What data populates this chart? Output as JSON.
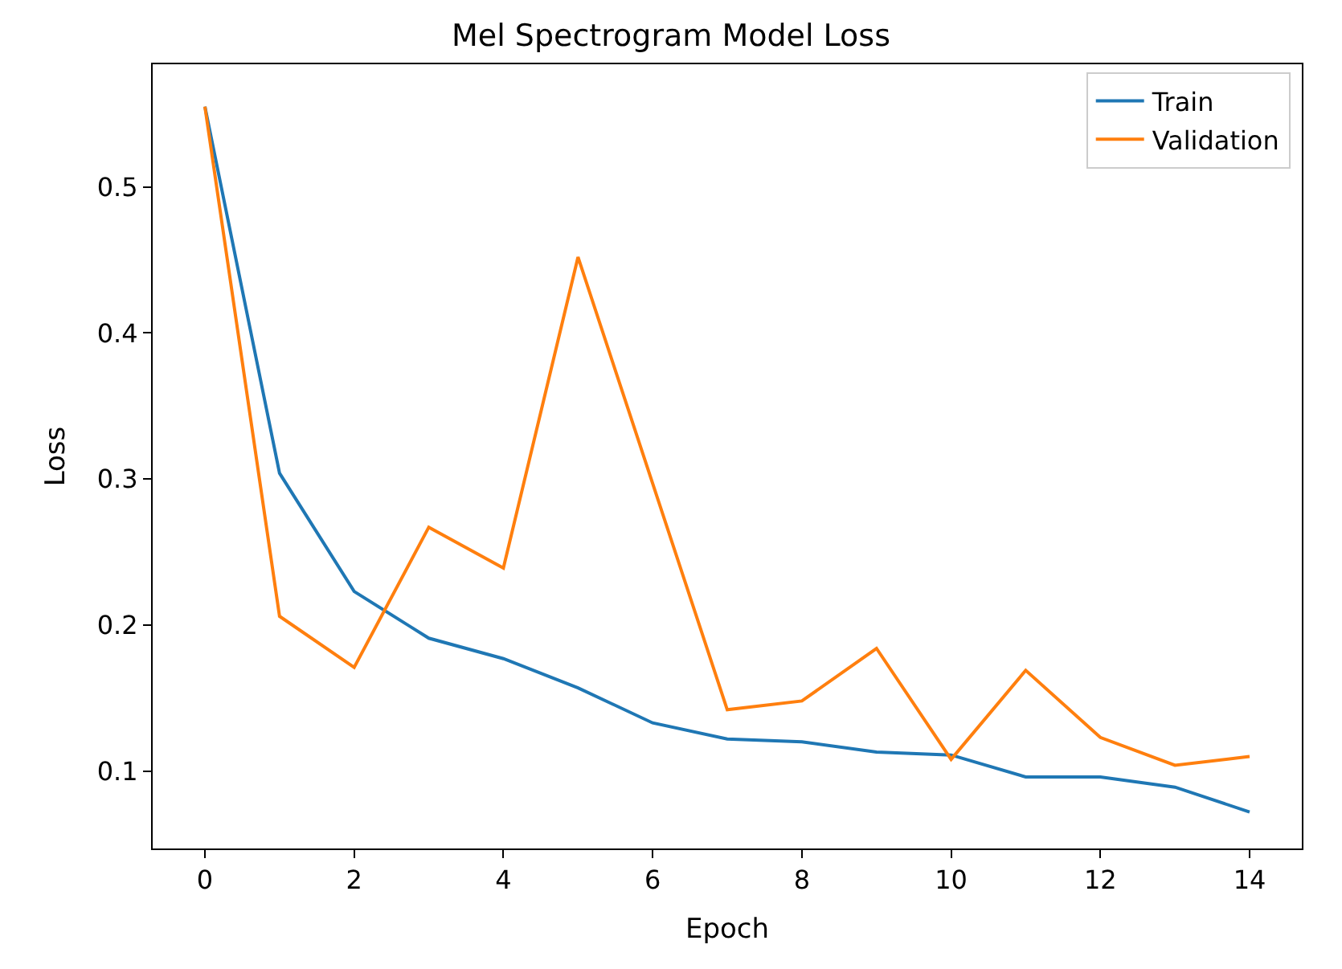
{
  "chart_data": {
    "type": "line",
    "title": "Mel Spectrogram Model Loss",
    "xlabel": "Epoch",
    "ylabel": "Loss",
    "x": [
      0,
      1,
      2,
      3,
      4,
      5,
      6,
      7,
      8,
      9,
      10,
      11,
      12,
      13,
      14
    ],
    "series": [
      {
        "name": "Train",
        "color": "#1f77b4",
        "values": [
          0.555,
          0.304,
          0.223,
          0.191,
          0.177,
          0.157,
          0.133,
          0.122,
          0.12,
          0.113,
          0.111,
          0.096,
          0.096,
          0.089,
          0.072
        ]
      },
      {
        "name": "Validation",
        "color": "#ff7f0e",
        "values": [
          0.555,
          0.206,
          0.171,
          0.267,
          0.239,
          0.452,
          0.297,
          0.142,
          0.148,
          0.184,
          0.108,
          0.169,
          0.123,
          0.104,
          0.11
        ]
      }
    ],
    "xlim": [
      -0.7,
      14.7
    ],
    "ylim": [
      0.047,
      0.584
    ],
    "xticks": [
      0,
      2,
      4,
      6,
      8,
      10,
      12,
      14
    ],
    "yticks": [
      0.1,
      0.2,
      0.3,
      0.4,
      0.5
    ],
    "legend": "top right",
    "marker": "none",
    "line_style": "solid"
  }
}
